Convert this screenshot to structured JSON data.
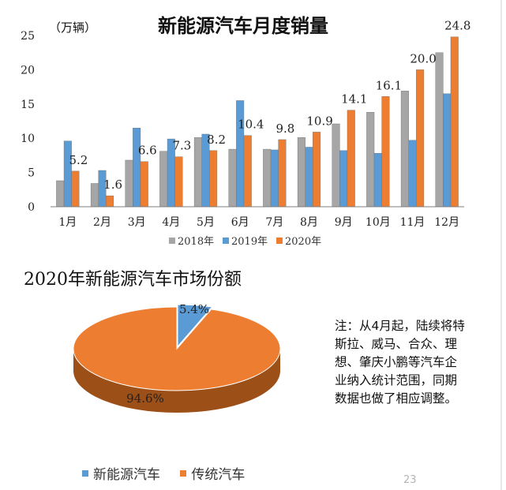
{
  "page_number": "23",
  "colors": {
    "series_2018": "#a6a6a6",
    "series_2019": "#5b9bd5",
    "series_2020": "#ed7d31",
    "pie_new_energy": "#5b9bd5",
    "pie_traditional": "#ed7d31"
  },
  "chart_data": [
    {
      "type": "bar",
      "title": "新能源汽车月度销量",
      "ylabel": "（万辆）",
      "xlabel": "",
      "ylim": [
        0,
        25
      ],
      "yticks": [
        "0",
        "5",
        "10",
        "15",
        "20",
        "25"
      ],
      "grid": false,
      "legend_position": "bottom",
      "categories": [
        "1月",
        "2月",
        "3月",
        "4月",
        "5月",
        "6月",
        "7月",
        "8月",
        "9月",
        "10月",
        "11月",
        "12月"
      ],
      "series": [
        {
          "name": "2018年",
          "values": [
            3.8,
            3.4,
            6.8,
            8.1,
            10.1,
            8.4,
            8.4,
            10.1,
            12.1,
            13.8,
            16.9,
            22.5
          ]
        },
        {
          "name": "2019年",
          "values": [
            9.6,
            5.3,
            11.5,
            9.9,
            10.6,
            15.5,
            8.3,
            8.7,
            8.2,
            7.8,
            9.7,
            16.5
          ]
        },
        {
          "name": "2020年",
          "values": [
            5.2,
            1.6,
            6.6,
            7.3,
            8.2,
            10.4,
            9.8,
            10.9,
            14.1,
            16.1,
            20.0,
            24.8
          ]
        }
      ],
      "data_labels": [
        "5.2",
        "1.6",
        "6.6",
        "7.3",
        "8.2",
        "10.4",
        "9.8",
        "10.9",
        "14.1",
        "16.1",
        "20.0",
        "24.8"
      ]
    },
    {
      "type": "pie",
      "title": "2020年新能源汽车市场份额",
      "categories": [
        "新能源汽车",
        "传统汽车"
      ],
      "values": [
        5.4,
        94.6
      ],
      "labels": [
        "5.4%",
        "94.6%"
      ],
      "legend_position": "bottom"
    }
  ],
  "note": "注：从4月起，陆续将特斯拉、威马、合众、理想、肇庆小鹏等汽车企业纳入统计范围，同期数据也做了相应调整。"
}
